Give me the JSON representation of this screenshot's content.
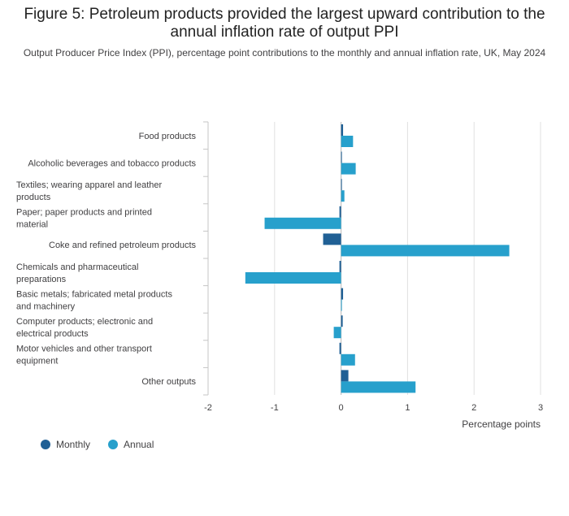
{
  "title": "Figure 5: Petroleum products provided the largest upward contribution to the annual inflation rate of output PPI",
  "subtitle": "Output Producer Price Index (PPI), percentage point contributions to the monthly and annual inflation rate, UK, May 2024",
  "colors": {
    "monthly": "#206095",
    "annual": "#27a0cc",
    "grid": "#e0e0e0",
    "axis": "#c5c5c5"
  },
  "chart_data": {
    "type": "bar",
    "orientation": "horizontal",
    "categories": [
      [
        "Food products"
      ],
      [
        "Alcoholic beverages and tobacco products"
      ],
      [
        "Textiles; wearing apparel and leather",
        "products"
      ],
      [
        "Paper; paper products and printed",
        "material"
      ],
      [
        "Coke and refined petroleum products"
      ],
      [
        "Chemicals and pharmaceutical",
        "preparations"
      ],
      [
        "Basic metals; fabricated metal products",
        "and machinery"
      ],
      [
        "Computer products; electronic and",
        "electrical products"
      ],
      [
        "Motor vehicles and other transport",
        "equipment"
      ],
      [
        "Other outputs"
      ]
    ],
    "series": [
      {
        "name": "Monthly",
        "values": [
          0.03,
          0.0,
          0.0,
          -0.01,
          -0.27,
          -0.01,
          0.03,
          0.02,
          -0.01,
          0.11
        ]
      },
      {
        "name": "Annual",
        "values": [
          0.18,
          0.22,
          0.05,
          -1.15,
          2.53,
          -1.44,
          0.0,
          -0.11,
          0.21,
          1.12
        ]
      }
    ],
    "xlim": [
      -2,
      3
    ],
    "xticks": [
      "-2",
      "-1",
      "0",
      "1",
      "2",
      "3"
    ],
    "xlabel": "Percentage points",
    "grid": true,
    "legend_position": "bottom-left"
  }
}
